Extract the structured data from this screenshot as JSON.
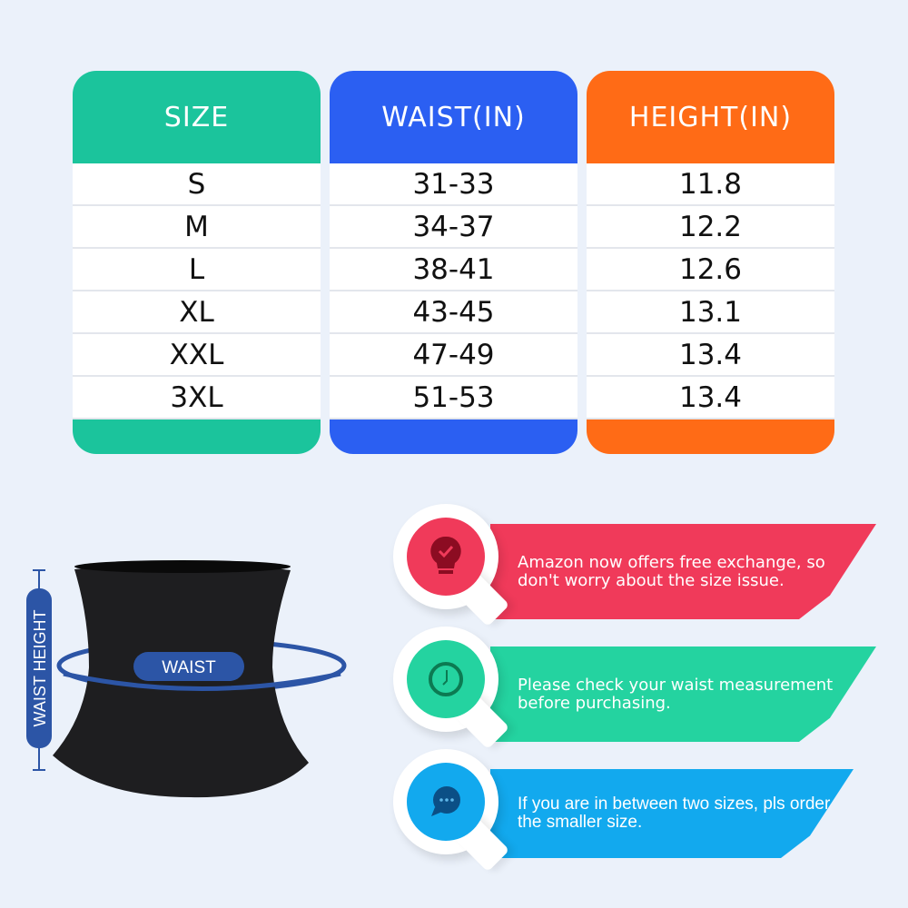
{
  "size_chart": {
    "columns": [
      {
        "header": "SIZE",
        "color": "#1bc49c",
        "values": [
          "S",
          "M",
          "L",
          "XL",
          "XXL",
          "3XL"
        ]
      },
      {
        "header": "WAIST(IN)",
        "color": "#2b5ff2",
        "values": [
          "31-33",
          "34-37",
          "38-41",
          "43-45",
          "47-49",
          "51-53"
        ]
      },
      {
        "header": "HEIGHT(IN)",
        "color": "#ff6b16",
        "values": [
          "11.8",
          "12.2",
          "12.6",
          "13.1",
          "13.4",
          "13.4"
        ]
      }
    ]
  },
  "illustration": {
    "waist_label": "WAIST",
    "waist_height_label": "WAIST HEIGHT",
    "accent": "#2c55a6"
  },
  "tips": [
    {
      "icon": "lightbulb-check-icon",
      "color": "#f03a5a",
      "text": "Amazon now offers free exchange, so don't worry about the size issue."
    },
    {
      "icon": "clock-icon",
      "color": "#24d3a0",
      "text": "Please check your waist measurement before purchasing."
    },
    {
      "icon": "chat-bubble-icon",
      "color": "#12a9ee",
      "text": "If you are in between two sizes, pls order the smaller size."
    }
  ]
}
